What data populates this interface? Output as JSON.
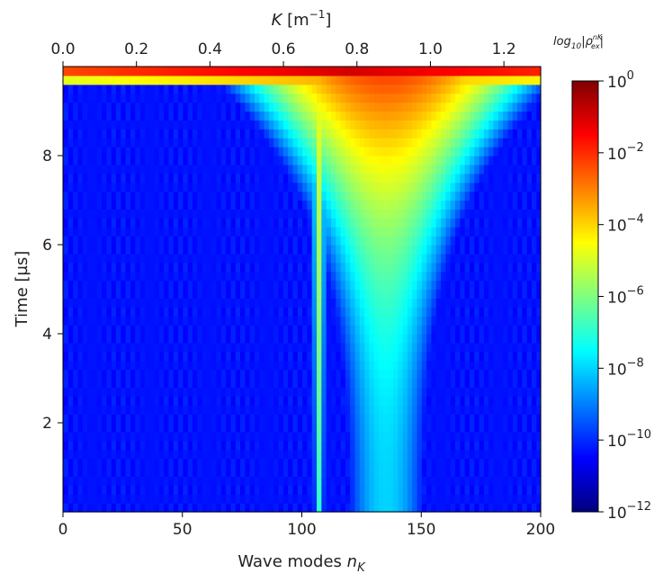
{
  "chart_data": {
    "type": "heatmap",
    "title": "",
    "xlabel_prefix": "Wave modes ",
    "xlabel_var": "n",
    "xlabel_sub": "K",
    "ylabel": "Time [µs]",
    "top_xlabel_var": "K",
    "top_xlabel_unit": " [m",
    "top_xlabel_exp": "−1",
    "top_xlabel_close": "]",
    "colorbar_label_fn": "log",
    "colorbar_label_fn_sub": "10",
    "colorbar_label_var": "|ρ",
    "colorbar_label_sup": "nK",
    "colorbar_label_sub": "ex",
    "colorbar_label_close": "|",
    "xlim": [
      0,
      200
    ],
    "ylim": [
      0,
      10
    ],
    "top_xlim": [
      0,
      1.3
    ],
    "x_ticks": [
      "0",
      "50",
      "100",
      "150",
      "200"
    ],
    "y_ticks": [
      "2",
      "4",
      "6",
      "8"
    ],
    "top_x_ticks": [
      "0.0",
      "0.2",
      "0.4",
      "0.6",
      "0.8",
      "1.0",
      "1.2"
    ],
    "colorbar_scale": "log",
    "colorbar_range": [
      1e-12,
      1
    ],
    "colorbar_colormap": "jet",
    "colorbar_ticks": [
      {
        "base": "10",
        "exp": "0"
      },
      {
        "base": "10",
        "exp": "-2"
      },
      {
        "base": "10",
        "exp": "-4"
      },
      {
        "base": "10",
        "exp": "-6"
      },
      {
        "base": "10",
        "exp": "-8"
      },
      {
        "base": "10",
        "exp": "-10"
      },
      {
        "base": "10",
        "exp": "-12"
      }
    ],
    "features": [
      {
        "name": "background",
        "log10_value": -10.3
      },
      {
        "name": "narrow-band",
        "x_center": 107,
        "x_width": 2,
        "log10_value": -7
      },
      {
        "name": "broad-band",
        "x_center": 135,
        "x_width_bottom": 15,
        "x_width_top": 40,
        "log10_value_range": [
          -8,
          -2
        ]
      },
      {
        "name": "top-edge",
        "t_start": 9.5,
        "t_end": 9.9,
        "log10_value": -1
      }
    ]
  }
}
